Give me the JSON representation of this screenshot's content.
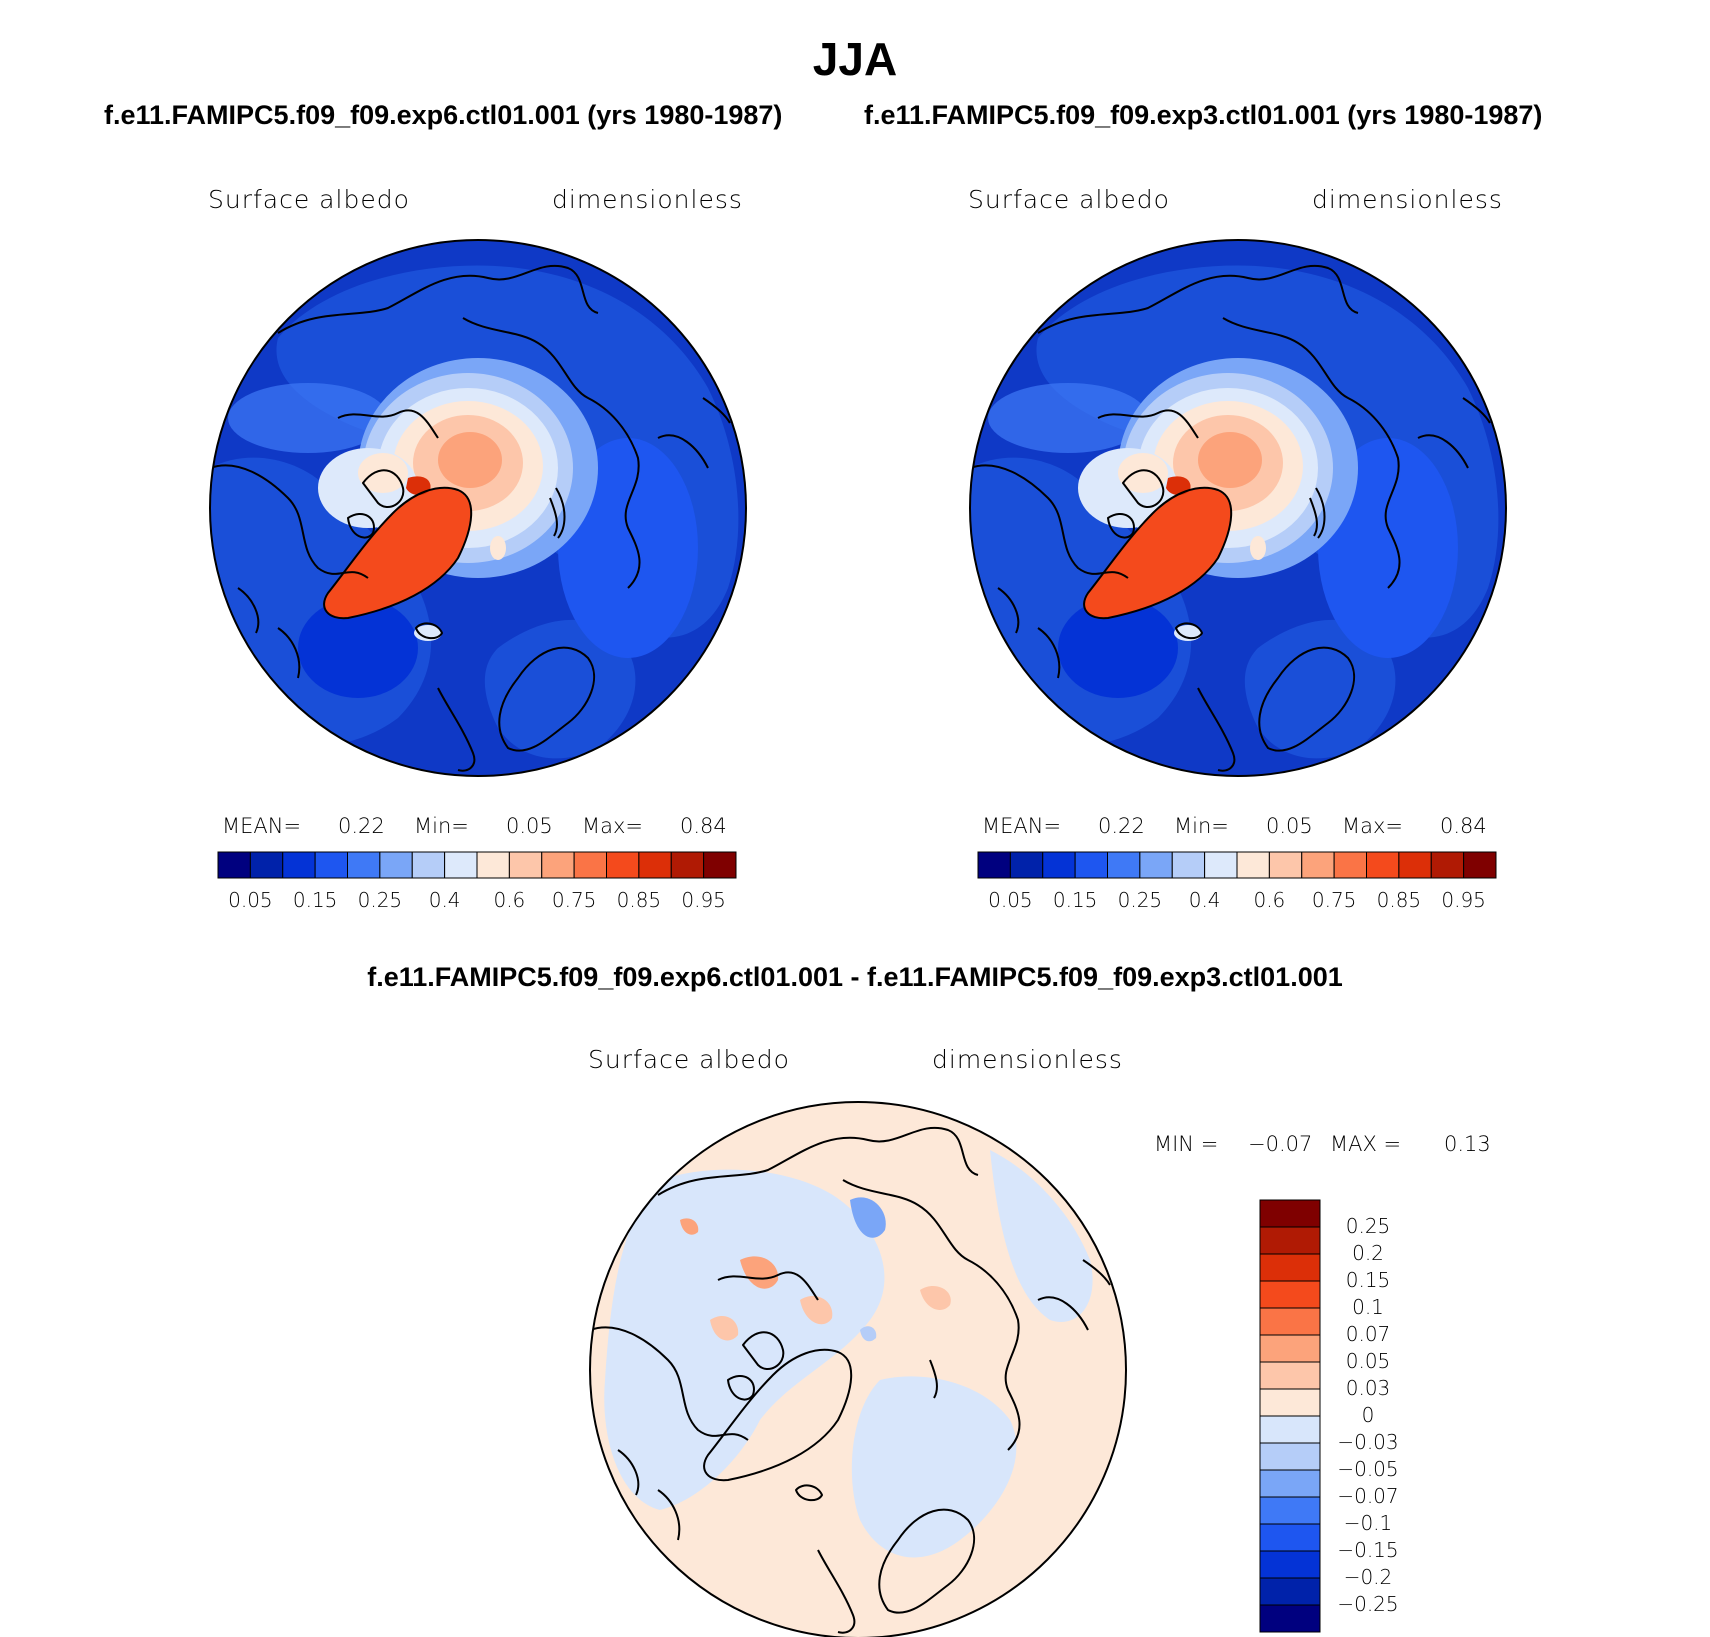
{
  "season": "JJA",
  "panels": [
    {
      "case_title": "f.e11.FAMIPC5.f09_f09.exp6.ctl01.001 (yrs 1980-1987)",
      "variable": "Surface albedo",
      "units": "dimensionless",
      "stats": {
        "mean_label": "MEAN=",
        "mean": "0.22",
        "min_label": "Min=",
        "min": "0.05",
        "max_label": "Max=",
        "max": "0.84"
      },
      "colorbar_ticks": [
        "0.05",
        "0.15",
        "0.25",
        "0.4",
        "0.6",
        "0.75",
        "0.85",
        "0.95"
      ]
    },
    {
      "case_title": "f.e11.FAMIPC5.f09_f09.exp3.ctl01.001 (yrs 1980-1987)",
      "variable": "Surface albedo",
      "units": "dimensionless",
      "stats": {
        "mean_label": "MEAN=",
        "mean": "0.22",
        "min_label": "Min=",
        "min": "0.05",
        "max_label": "Max=",
        "max": "0.84"
      },
      "colorbar_ticks": [
        "0.05",
        "0.15",
        "0.25",
        "0.4",
        "0.6",
        "0.75",
        "0.85",
        "0.95"
      ]
    }
  ],
  "difference": {
    "title": "f.e11.FAMIPC5.f09_f09.exp6.ctl01.001 - f.e11.FAMIPC5.f09_f09.exp3.ctl01.001",
    "variable": "Surface albedo",
    "units": "dimensionless",
    "stats": {
      "min_label": "MIN =",
      "min": "−0.07",
      "max_label": "MAX =",
      "max": "0.13"
    },
    "colorbar_ticks": [
      "0.25",
      "0.2",
      "0.15",
      "0.1",
      "0.07",
      "0.05",
      "0.03",
      "0",
      "−0.03",
      "−0.05",
      "−0.07",
      "−0.1",
      "−0.15",
      "−0.2",
      "−0.25"
    ]
  },
  "colors": {
    "abs_scale": [
      "#00007f",
      "#0022aa",
      "#0433d6",
      "#1e56f0",
      "#3f79f6",
      "#7aa6f7",
      "#b5cdf8",
      "#dde9fb",
      "#fde8d8",
      "#fdc6aa",
      "#fca37b",
      "#fa7446",
      "#f44a1c",
      "#dc2f08",
      "#b01a04",
      "#7f0000"
    ],
    "diff_scale": [
      "#7f0000",
      "#b01a04",
      "#dc2f08",
      "#f44a1c",
      "#fa7446",
      "#fca37b",
      "#fdc6aa",
      "#fde8d8",
      "#d8e6fb",
      "#b5cdf8",
      "#7aa6f7",
      "#3f79f6",
      "#1e56f0",
      "#0433d6",
      "#0022aa",
      "#00007f"
    ],
    "land": "#1a4fd8",
    "ocean": "#0f39c6",
    "coast": "#000000"
  },
  "chart_data": [
    {
      "type": "heatmap",
      "projection": "north polar stereographic",
      "field": "Surface albedo",
      "units": "dimensionless",
      "case": "f.e11.FAMIPC5.f09_f09.exp6.ctl01.001 (yrs 1980-1987)",
      "mean": 0.22,
      "min": 0.05,
      "max": 0.84,
      "contour_levels": [
        0.05,
        0.1,
        0.15,
        0.2,
        0.25,
        0.3,
        0.4,
        0.5,
        0.6,
        0.7,
        0.75,
        0.8,
        0.85,
        0.9,
        0.95
      ]
    },
    {
      "type": "heatmap",
      "projection": "north polar stereographic",
      "field": "Surface albedo",
      "units": "dimensionless",
      "case": "f.e11.FAMIPC5.f09_f09.exp3.ctl01.001 (yrs 1980-1987)",
      "mean": 0.22,
      "min": 0.05,
      "max": 0.84,
      "contour_levels": [
        0.05,
        0.1,
        0.15,
        0.2,
        0.25,
        0.3,
        0.4,
        0.5,
        0.6,
        0.7,
        0.75,
        0.8,
        0.85,
        0.9,
        0.95
      ]
    },
    {
      "type": "heatmap",
      "projection": "north polar stereographic",
      "field": "Surface albedo",
      "units": "dimensionless",
      "case": "f.e11.FAMIPC5.f09_f09.exp6.ctl01.001 - f.e11.FAMIPC5.f09_f09.exp3.ctl01.001",
      "min": -0.07,
      "max": 0.13,
      "contour_levels": [
        -0.25,
        -0.2,
        -0.15,
        -0.1,
        -0.07,
        -0.05,
        -0.03,
        0,
        0.03,
        0.05,
        0.07,
        0.1,
        0.15,
        0.2,
        0.25
      ]
    }
  ]
}
